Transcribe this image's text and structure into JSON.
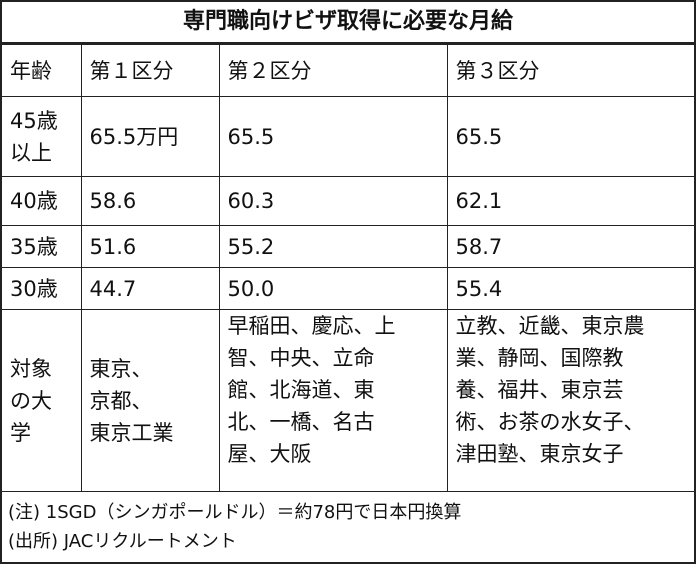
{
  "title": "専門職向けビザ取得に必要な月給",
  "table": {
    "header": [
      "年齢",
      "第１区分",
      "第２区分",
      "第３区分"
    ],
    "rows": [
      [
        [
          "45歳",
          "以上"
        ],
        "65.5万円",
        "65.5",
        "65.5"
      ],
      [
        "40歳",
        "58.6",
        "60.3",
        "62.1"
      ],
      [
        "35歳",
        "51.6",
        "55.2",
        "58.7"
      ],
      [
        "30歳",
        "44.7",
        "50.0",
        "55.4"
      ],
      [
        [
          "対象",
          "の大",
          "学"
        ],
        [
          "東京、",
          "京都、",
          "東京工業"
        ],
        [
          "早稲田、慶応、上",
          "智、中央、立命",
          "館、北海道、東",
          "北、一橋、名古",
          "屋、大阪"
        ],
        [
          "立教、近畿、東京農",
          "業、静岡、国際教",
          "養、福井、東京芸",
          "術、お茶の水女子、",
          "津田塾、東京女子"
        ]
      ]
    ]
  },
  "notes": [
    "(注) 1SGD（シンガポールドル）＝約78円で日本円換算",
    "(出所) JACリクルートメント"
  ]
}
